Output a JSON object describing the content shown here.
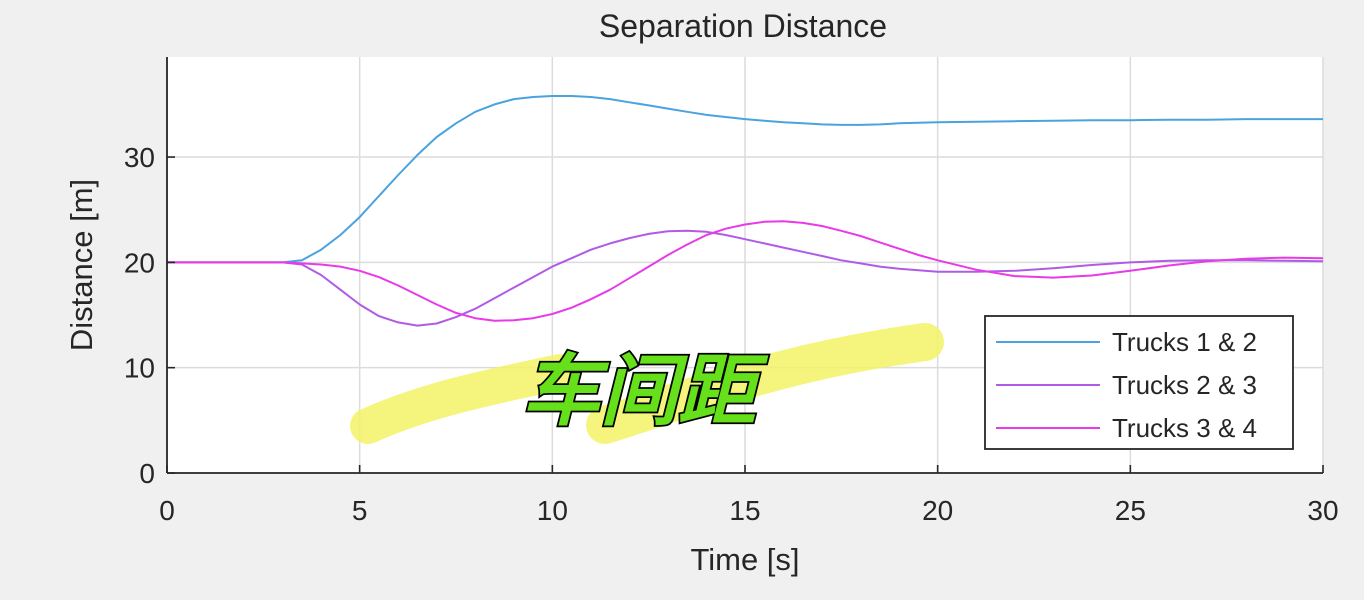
{
  "chart_data": {
    "type": "line",
    "title": "Separation Distance",
    "xlabel": "Time [s]",
    "ylabel": "Distance [m]",
    "xlim": [
      0,
      30
    ],
    "ylim": [
      0,
      39.5
    ],
    "xticks": [
      0,
      5,
      10,
      15,
      20,
      25,
      30
    ],
    "yticks": [
      0,
      10,
      20,
      30
    ],
    "grid": true,
    "legend_position": "bottom-right",
    "x": [
      0,
      1,
      2,
      3,
      3.5,
      4,
      4.5,
      5,
      5.5,
      6,
      6.5,
      7,
      7.5,
      8,
      8.5,
      9,
      9.5,
      10,
      10.5,
      11,
      11.5,
      12,
      12.5,
      13,
      13.5,
      14,
      14.5,
      15,
      15.5,
      16,
      16.5,
      17,
      17.5,
      18,
      18.5,
      19,
      19.5,
      20,
      21,
      22,
      23,
      24,
      25,
      26,
      27,
      28,
      29,
      30
    ],
    "series": [
      {
        "name": "Trucks 1 & 2",
        "color": "#4aa3df",
        "values": [
          20,
          20,
          20,
          20,
          20.2,
          21.2,
          22.6,
          24.3,
          26.3,
          28.3,
          30.2,
          31.9,
          33.2,
          34.3,
          35.0,
          35.5,
          35.7,
          35.8,
          35.8,
          35.7,
          35.5,
          35.2,
          34.9,
          34.6,
          34.3,
          34.0,
          33.8,
          33.6,
          33.45,
          33.3,
          33.2,
          33.1,
          33.05,
          33.05,
          33.1,
          33.2,
          33.25,
          33.3,
          33.35,
          33.4,
          33.45,
          33.5,
          33.5,
          33.55,
          33.55,
          33.6,
          33.6,
          33.6
        ]
      },
      {
        "name": "Trucks 2 & 3",
        "color": "#b05be6",
        "values": [
          20,
          20,
          20,
          20,
          19.8,
          18.8,
          17.4,
          16.0,
          14.9,
          14.3,
          14.0,
          14.2,
          14.8,
          15.6,
          16.6,
          17.6,
          18.6,
          19.6,
          20.4,
          21.2,
          21.8,
          22.3,
          22.7,
          22.95,
          23.0,
          22.9,
          22.6,
          22.2,
          21.8,
          21.4,
          21.0,
          20.6,
          20.2,
          19.9,
          19.6,
          19.4,
          19.25,
          19.1,
          19.1,
          19.2,
          19.45,
          19.75,
          20.0,
          20.15,
          20.2,
          20.2,
          20.15,
          20.1
        ]
      },
      {
        "name": "Trucks 3 & 4",
        "color": "#e83ae8",
        "values": [
          20,
          20,
          20,
          20,
          19.9,
          19.8,
          19.6,
          19.2,
          18.6,
          17.8,
          16.9,
          16.0,
          15.2,
          14.7,
          14.45,
          14.5,
          14.7,
          15.1,
          15.7,
          16.5,
          17.4,
          18.5,
          19.6,
          20.7,
          21.7,
          22.6,
          23.2,
          23.6,
          23.85,
          23.9,
          23.75,
          23.45,
          23.0,
          22.5,
          21.9,
          21.3,
          20.7,
          20.2,
          19.3,
          18.7,
          18.55,
          18.75,
          19.2,
          19.7,
          20.1,
          20.35,
          20.45,
          20.4
        ]
      }
    ]
  },
  "overlay": {
    "caption": "车间距",
    "caption_color": "#66e01a",
    "highlight_color": "#f3f366"
  }
}
